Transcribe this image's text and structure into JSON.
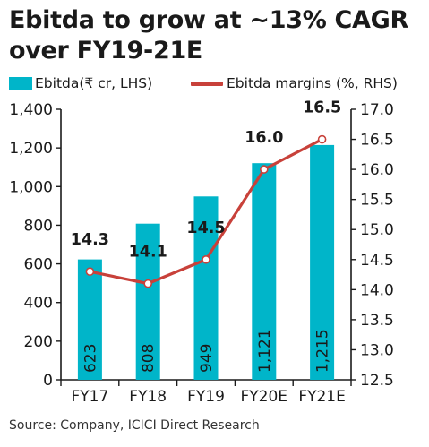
{
  "title": "Ebitda to grow at ~13% CAGR over FY19-21E",
  "legend": {
    "bar_label": "Ebitda(₹ cr, LHS)",
    "line_label": "Ebitda margins (%, RHS)"
  },
  "source": "Source: Company, ICICI Direct Research",
  "colors": {
    "bar": "#00B5C9",
    "line": "#C8413A",
    "axis": "#1a1a1a"
  },
  "chart_data": {
    "type": "bar",
    "categories": [
      "FY17",
      "FY18",
      "FY19",
      "FY20E",
      "FY21E"
    ],
    "series": [
      {
        "name": "Ebitda(₹ cr, LHS)",
        "type": "bar",
        "axis": "left",
        "values": [
          623,
          808,
          949,
          1121,
          1215
        ],
        "labels": [
          "623",
          "808",
          "949",
          "1,121",
          "1,215"
        ]
      },
      {
        "name": "Ebitda margins (%, RHS)",
        "type": "line",
        "axis": "right",
        "values": [
          14.3,
          14.1,
          14.5,
          16.0,
          16.5
        ],
        "labels": [
          "14.3",
          "14.1",
          "14.5",
          "16.0",
          "16.5"
        ]
      }
    ],
    "y_left": {
      "ylim": [
        0,
        1400
      ],
      "ticks": [
        0,
        200,
        400,
        600,
        800,
        1000,
        1200,
        1400
      ],
      "tick_labels": [
        "0",
        "200",
        "400",
        "600",
        "800",
        "1,000",
        "1,200",
        "1,400"
      ]
    },
    "y_right": {
      "ylim": [
        12.5,
        17.0
      ],
      "ticks": [
        12.5,
        13.0,
        13.5,
        14.0,
        14.5,
        15.0,
        15.5,
        16.0,
        16.5,
        17.0
      ],
      "tick_labels": [
        "12.5",
        "13.0",
        "13.5",
        "14.0",
        "14.5",
        "15.0",
        "15.5",
        "16.0",
        "16.5",
        "17.0"
      ]
    },
    "grid": false,
    "legend_position": "top"
  }
}
